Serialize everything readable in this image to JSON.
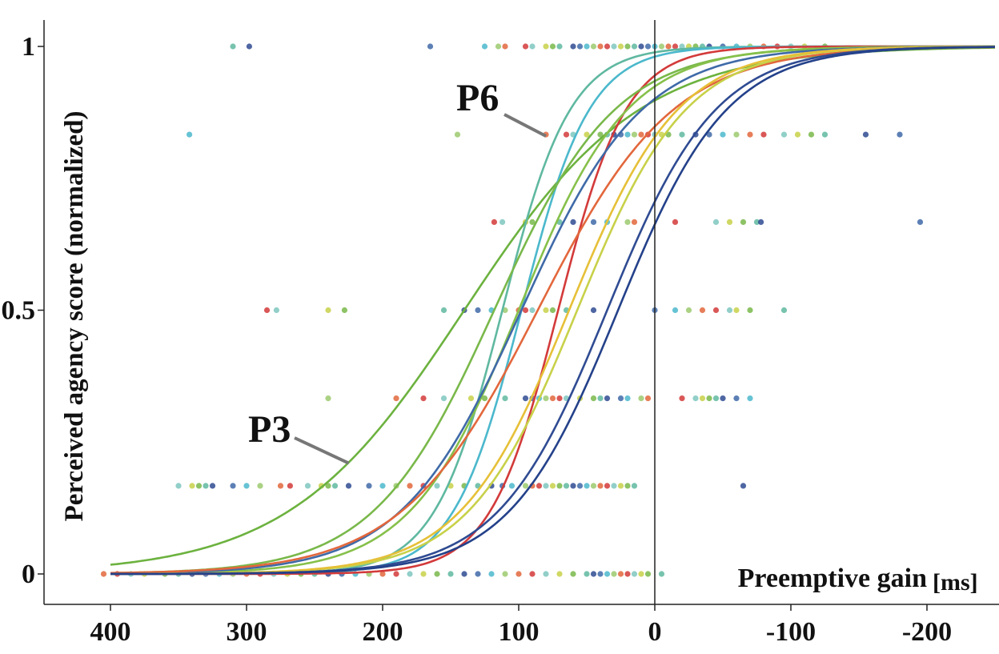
{
  "chart_data": {
    "type": "scatter",
    "title": "",
    "xlabel": "Preemptive gain",
    "xunit": "[ms]",
    "ylabel": "Perceived agency score (normalized)",
    "xlim": [
      450,
      -250
    ],
    "ylim": [
      -0.03,
      1.05
    ],
    "x_reversed": true,
    "x_ticks": [
      400,
      300,
      200,
      100,
      0,
      -100,
      -200
    ],
    "x_tick_labels": [
      "400",
      "300",
      "200",
      "100",
      "0",
      "-100",
      "-200"
    ],
    "y_ticks": [
      0,
      0.5,
      1
    ],
    "y_tick_labels": [
      "0",
      "0.5",
      "1"
    ],
    "reference_line_x": 0,
    "grid": false,
    "legend": "none",
    "annotations": [
      {
        "text": "P6",
        "series": "P6",
        "x": 80,
        "y": 0.83
      },
      {
        "text": "P3",
        "series": "P3",
        "x": 225,
        "y": 0.21
      }
    ],
    "series": [
      {
        "name": "P3",
        "color": "#6cb23f",
        "x50": 140,
        "slope": 0.0155,
        "legend_visible": false
      },
      {
        "name": "P6",
        "color": "#5fb8a0",
        "x50": 112,
        "slope": 0.04,
        "legend_visible": false
      },
      {
        "color": "#4bb8cc",
        "x50": 98,
        "slope": 0.04
      },
      {
        "color": "#d33a3a",
        "x50": 71,
        "slope": 0.04
      },
      {
        "color": "#79b84a",
        "x50": 118,
        "slope": 0.0225
      },
      {
        "color": "#86c04a",
        "x50": 100,
        "slope": 0.025
      },
      {
        "color": "#3f6aa8",
        "x50": 98,
        "slope": 0.0225
      },
      {
        "color": "#e2673c",
        "x50": 86,
        "slope": 0.02
      },
      {
        "color": "#c8d149",
        "x50": 57,
        "slope": 0.025
      },
      {
        "color": "#e6c038",
        "x50": 63,
        "slope": 0.025
      },
      {
        "color": "#2f4b92",
        "x50": 35,
        "slope": 0.025
      },
      {
        "color": "#24418a",
        "x50": 27,
        "slope": 0.025
      }
    ],
    "point_colors": [
      "#5fb8a0",
      "#4bb8cc",
      "#d33a3a",
      "#79b84a",
      "#3f6aa8",
      "#e2673c",
      "#c8d149",
      "#2f4b92",
      "#9cca6e",
      "#7fc7c0"
    ],
    "points": [
      {
        "y": 1,
        "x": [
          310,
          298,
          165,
          125,
          115,
          110,
          95,
          90,
          80,
          75,
          70,
          60,
          55,
          50,
          45,
          40,
          35,
          30,
          25,
          20,
          15,
          10,
          5,
          0,
          -5,
          -10,
          -15,
          -20,
          -25,
          -30,
          -35,
          -40,
          -50,
          -60,
          -70,
          -80,
          -90,
          -100,
          -110,
          -125
        ]
      },
      {
        "y": 0.833,
        "x": [
          342,
          145,
          80,
          65,
          60,
          50,
          40,
          35,
          30,
          25,
          20,
          15,
          10,
          5,
          0,
          -5,
          -10,
          -20,
          -30,
          -40,
          -50,
          -60,
          -70,
          -80,
          -95,
          -105,
          -115,
          -125,
          -155,
          -180
        ]
      },
      {
        "y": 0.667,
        "x": [
          118,
          112,
          95,
          90,
          70,
          60,
          45,
          35,
          20,
          15,
          -15,
          -45,
          -55,
          -65,
          -75,
          -78,
          -195
        ]
      },
      {
        "y": 0.5,
        "x": [
          285,
          278,
          240,
          228,
          155,
          140,
          130,
          120,
          110,
          100,
          95,
          90,
          80,
          75,
          65,
          45,
          0,
          -15,
          -25,
          -35,
          -45,
          -55,
          -60,
          -70,
          -95
        ]
      },
      {
        "y": 0.333,
        "x": [
          240,
          190,
          170,
          155,
          135,
          125,
          110,
          95,
          90,
          85,
          80,
          75,
          70,
          65,
          55,
          45,
          40,
          35,
          25,
          20,
          10,
          5,
          -20,
          -30,
          -35,
          -40,
          -45,
          -50,
          -60,
          -70
        ]
      },
      {
        "y": 0.167,
        "x": [
          350,
          340,
          335,
          330,
          325,
          310,
          300,
          290,
          275,
          268,
          255,
          245,
          240,
          235,
          225,
          210,
          200,
          190,
          180,
          170,
          160,
          150,
          140,
          130,
          120,
          112,
          105,
          95,
          90,
          85,
          80,
          75,
          70,
          65,
          60,
          55,
          50,
          45,
          40,
          35,
          30,
          25,
          20,
          15,
          -65
        ]
      },
      {
        "y": 0,
        "x": [
          405,
          395,
          385,
          375,
          360,
          350,
          340,
          330,
          320,
          310,
          300,
          290,
          280,
          270,
          260,
          250,
          240,
          230,
          220,
          210,
          200,
          190,
          180,
          170,
          160,
          150,
          140,
          130,
          120,
          110,
          100,
          90,
          80,
          70,
          60,
          50,
          45,
          40,
          35,
          30,
          25,
          20,
          15,
          10,
          5,
          -5
        ]
      }
    ]
  }
}
